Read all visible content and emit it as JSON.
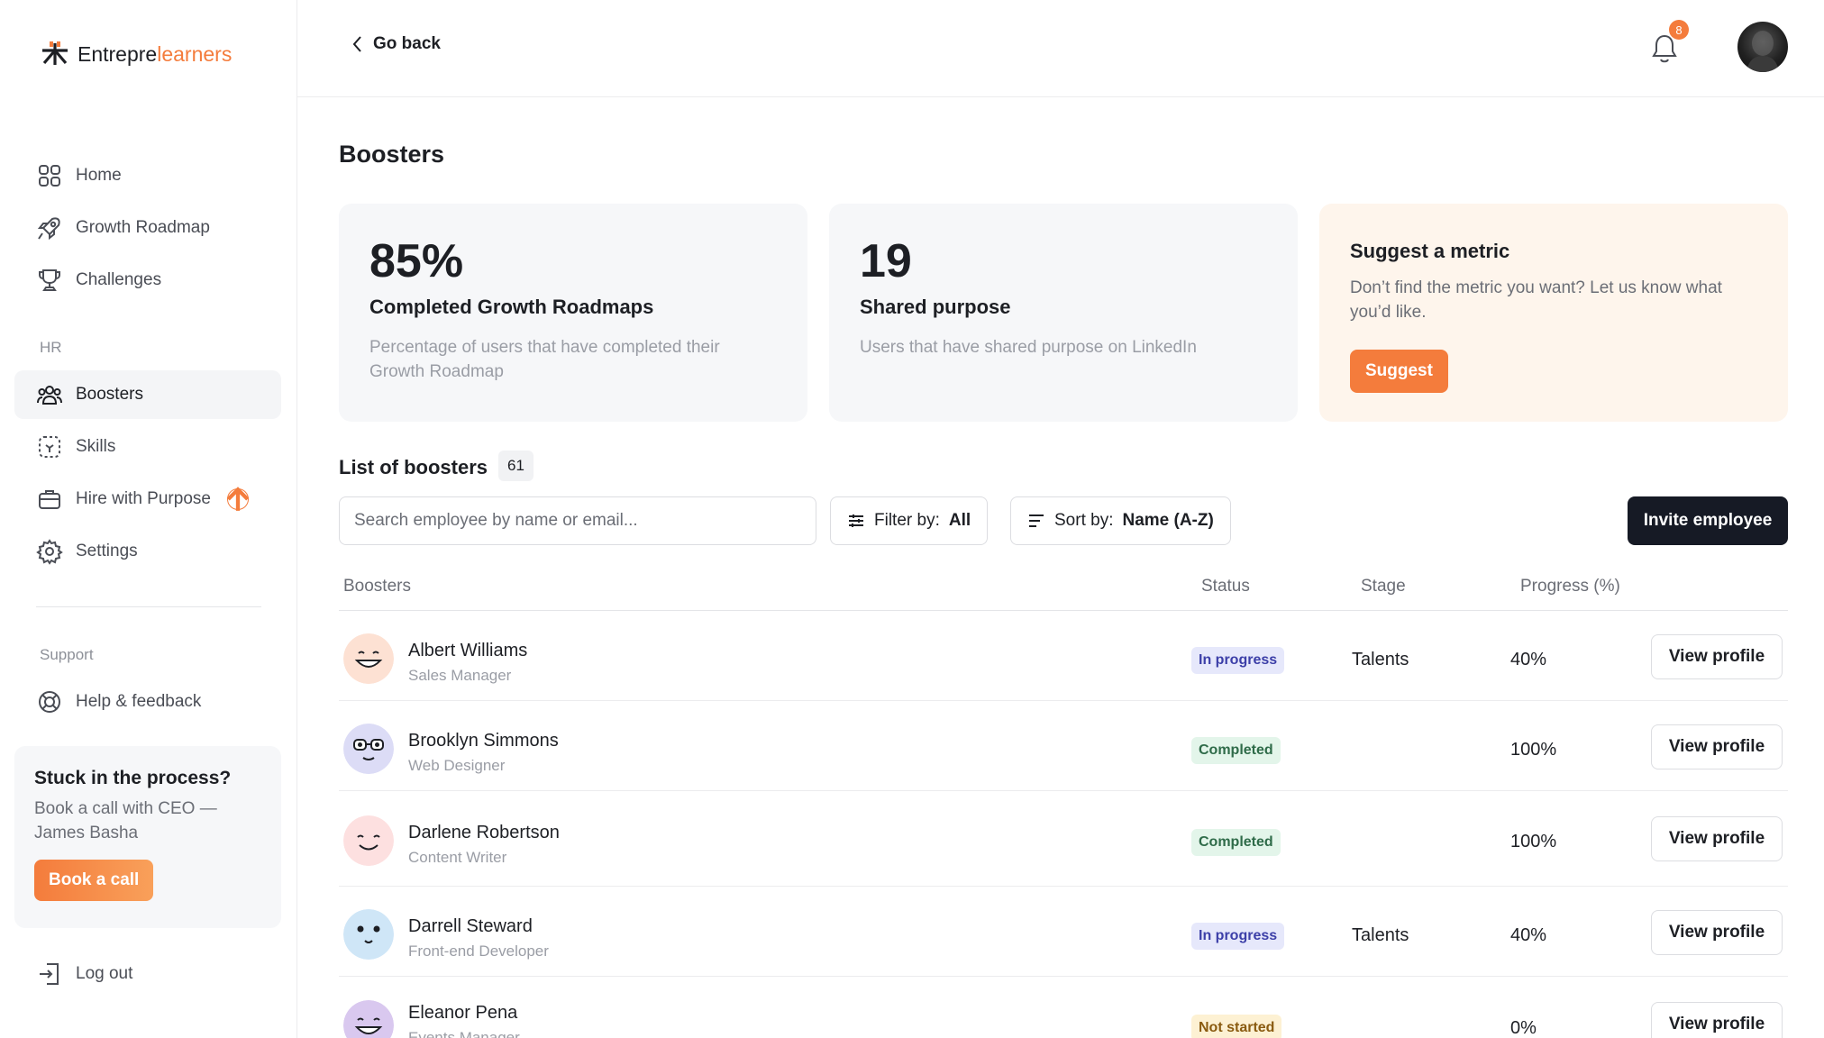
{
  "brand": {
    "part1": "Entrepre",
    "part2": "learners",
    "accent": "#f47c3c"
  },
  "nav": {
    "items": [
      {
        "label": "Home",
        "icon": "grid-icon"
      },
      {
        "label": "Growth Roadmap",
        "icon": "rocket-icon"
      },
      {
        "label": "Challenges",
        "icon": "trophy-icon"
      }
    ],
    "hr_label": "HR",
    "hr_items": [
      {
        "label": "Boosters",
        "icon": "users-icon",
        "active": true
      },
      {
        "label": "Skills",
        "icon": "skills-icon"
      },
      {
        "label": "Hire with Purpose",
        "icon": "briefcase-icon"
      },
      {
        "label": "Settings",
        "icon": "gear-icon"
      }
    ],
    "support_label": "Support",
    "support_items": [
      {
        "label": "Help & feedback",
        "icon": "lifebuoy-icon"
      }
    ],
    "logout_label": "Log out"
  },
  "stuck": {
    "title": "Stuck in the process?",
    "text": "Book a call with CEO — James Basha",
    "button": "Book a call"
  },
  "topbar": {
    "back_label": "Go back",
    "notification_count": "8"
  },
  "page": {
    "title": "Boosters"
  },
  "metrics": [
    {
      "value": "85%",
      "title": "Completed Growth Roadmaps",
      "desc": "Percentage of users that have completed their Growth Roadmap"
    },
    {
      "value": "19",
      "title": "Shared purpose",
      "desc": "Users that have shared purpose on LinkedIn"
    }
  ],
  "suggest": {
    "title": "Suggest a metric",
    "desc": "Don’t find the metric you want? Let us know what you’d like.",
    "button": "Suggest"
  },
  "list": {
    "title": "List of boosters",
    "count": "61",
    "search_placeholder": "Search employee by name or email...",
    "filter_label": "Filter by:",
    "filter_value": "All",
    "sort_label": "Sort by:",
    "sort_value": "Name (A-Z)",
    "invite_button": "Invite employee",
    "columns": {
      "boosters": "Boosters",
      "status": "Status",
      "stage": "Stage",
      "progress": "Progress (%)"
    },
    "view_label": "View profile",
    "rows": [
      {
        "name": "Albert Williams",
        "role": "Sales Manager",
        "status": "In progress",
        "stage": "Talents",
        "progress": "40%"
      },
      {
        "name": "Brooklyn Simmons",
        "role": "Web Designer",
        "status": "Completed",
        "stage": "",
        "progress": "100%"
      },
      {
        "name": "Darlene Robertson",
        "role": "Content Writer",
        "status": "Completed",
        "stage": "",
        "progress": "100%"
      },
      {
        "name": "Darrell Steward",
        "role": "Front-end Developer",
        "status": "In progress",
        "stage": "Talents",
        "progress": "40%"
      },
      {
        "name": "Eleanor Pena",
        "role": "Events Manager",
        "status": "Not started",
        "stage": "",
        "progress": "0%"
      }
    ]
  }
}
